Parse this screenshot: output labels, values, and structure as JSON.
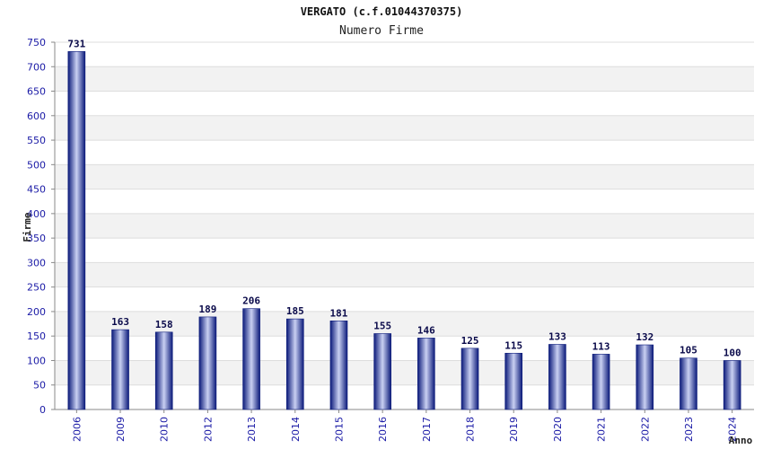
{
  "chart_data": {
    "type": "bar",
    "title": "VERGATO (c.f.01044370375)",
    "subtitle": "Numero Firme",
    "ylabel": "Firme",
    "xlabel": "Anno",
    "categories": [
      "2006",
      "2009",
      "2010",
      "2012",
      "2013",
      "2014",
      "2015",
      "2016",
      "2017",
      "2018",
      "2019",
      "2020",
      "2021",
      "2022",
      "2023",
      "2024"
    ],
    "values": [
      731,
      163,
      158,
      189,
      206,
      185,
      181,
      155,
      146,
      125,
      115,
      133,
      113,
      132,
      105,
      100
    ],
    "ylim": [
      0,
      750
    ],
    "yticks": [
      0,
      50,
      100,
      150,
      200,
      250,
      300,
      350,
      400,
      450,
      500,
      550,
      600,
      650,
      700,
      750
    ],
    "grid": true,
    "colors": {
      "bar_edge": "#0b1a7a",
      "bar_mid": "#c9d0f2",
      "tick_text": "#1a1aa6",
      "band": "#f2f2f2"
    }
  }
}
